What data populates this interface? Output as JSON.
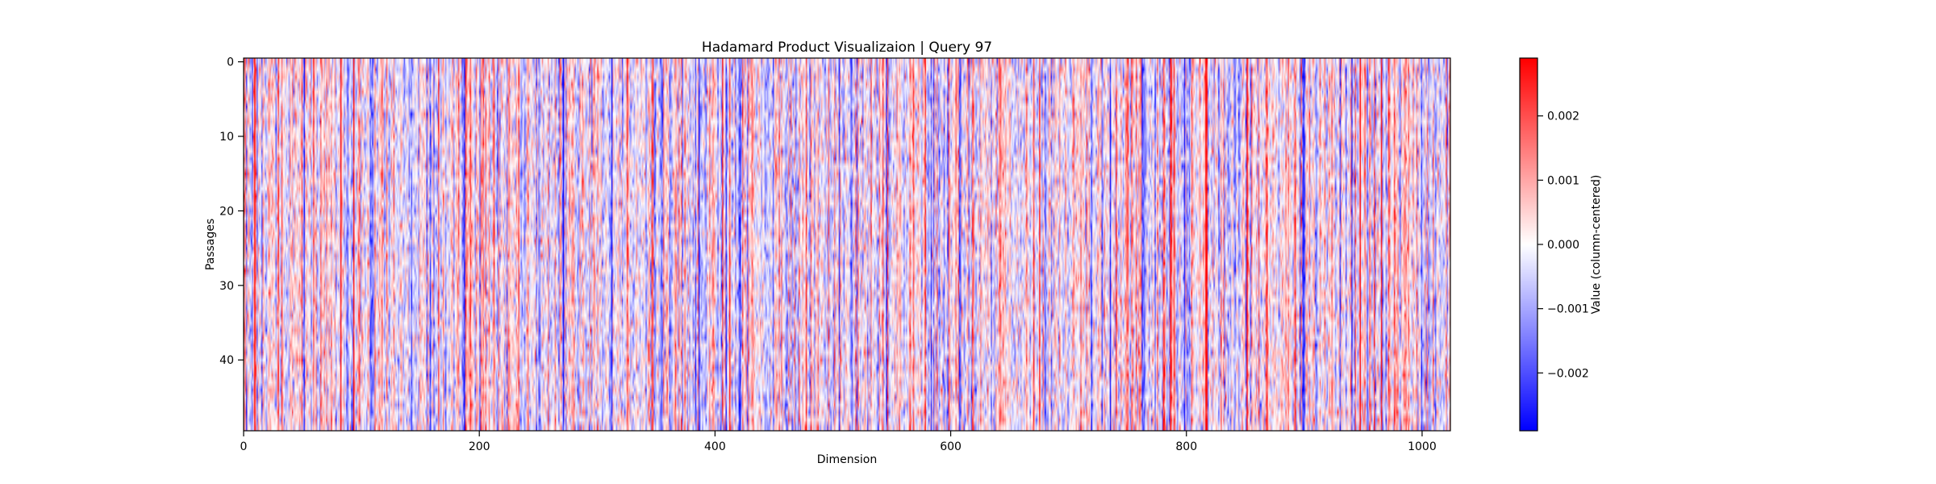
{
  "chart_data": {
    "type": "heatmap",
    "title": "Hadamard Product Visualizaion | Query 97",
    "xlabel": "Dimension",
    "ylabel": "Passages",
    "xlim": [
      0,
      1024
    ],
    "ylim": [
      49.5,
      -0.5
    ],
    "x_ticks": [
      0,
      200,
      400,
      600,
      800,
      1000
    ],
    "x_tick_labels": [
      "0",
      "200",
      "400",
      "600",
      "800",
      "1000"
    ],
    "y_ticks": [
      0,
      10,
      20,
      30,
      40
    ],
    "y_tick_labels": [
      "0",
      "10",
      "20",
      "30",
      "40"
    ],
    "n_rows": 50,
    "n_cols": 1024,
    "colormap": "bwr",
    "colorbar": {
      "label": "Value (column-centered)",
      "range": [
        -0.0029,
        0.0029
      ],
      "ticks": [
        -0.002,
        -0.001,
        0.0,
        0.001,
        0.002
      ],
      "tick_labels": [
        "−0.002",
        "−0.001",
        "0.000",
        "0.001",
        "0.002"
      ]
    },
    "colors": {
      "low": "#0000ff",
      "mid": "#ffffff",
      "high": "#ff0000"
    },
    "grid": false
  }
}
